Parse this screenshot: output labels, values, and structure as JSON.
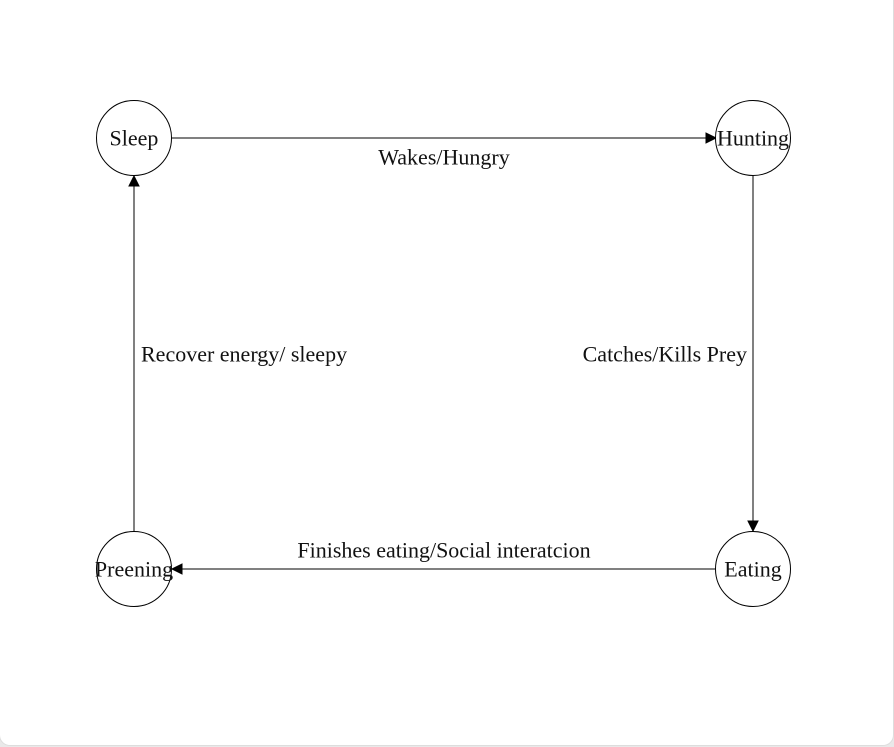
{
  "diagram": {
    "states": {
      "sleep": "Sleep",
      "hunting": "Hunting",
      "eating": "Eating",
      "preening": "Preening"
    },
    "transitions": {
      "sleep_to_hunting": "Wakes/Hungry",
      "hunting_to_eating": "Catches/Kills Prey",
      "eating_to_preening": "Finishes eating/Social interatcion",
      "preening_to_sleep": "Recover energy/ sleepy"
    }
  }
}
